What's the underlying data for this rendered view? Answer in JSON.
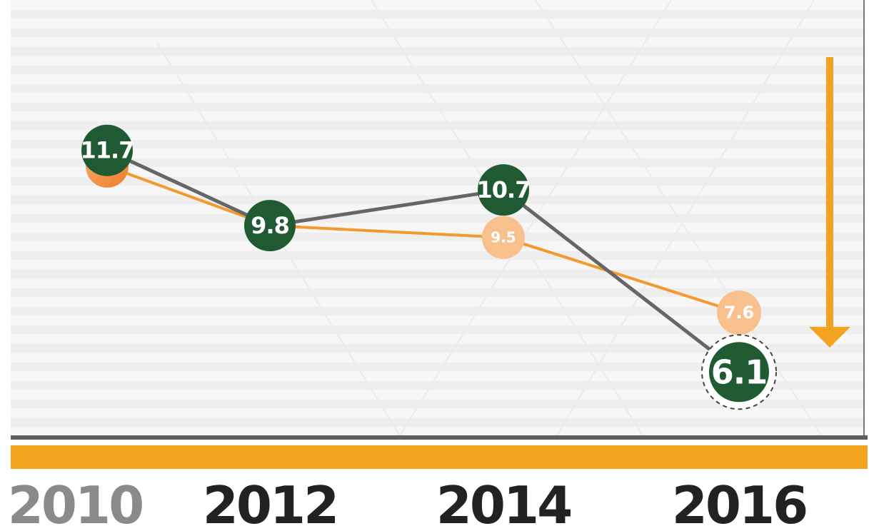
{
  "chart_data": {
    "type": "line",
    "categories": [
      "2010",
      "2012",
      "2014",
      "2016"
    ],
    "series": [
      {
        "color": "#1f5a32",
        "line_color": "#666666",
        "values": [
          11.7,
          9.8,
          10.7,
          6.1
        ],
        "labels": [
          "11.7",
          "9.8",
          "10.7",
          "6.1"
        ]
      },
      {
        "color": "#f7c08d",
        "line_color": "#f29a2e",
        "values": [
          11.3,
          9.8,
          9.5,
          7.6
        ],
        "labels": [
          "11.3",
          "9.8",
          "9.5",
          "7.6"
        ]
      }
    ],
    "xtick_labels": [
      "2010",
      "2012",
      "2014",
      "2016"
    ],
    "xtick_colors": [
      "#8a8a8a",
      "#222222",
      "#222222",
      "#222222"
    ],
    "title": "",
    "xlabel": "",
    "ylabel": "",
    "ylim": [
      4.5,
      15.5
    ],
    "grid": true,
    "annotations": [
      "downward-arrow"
    ],
    "accent_colors": {
      "bar": "#f2a320",
      "axis": "#5e5e5e",
      "arrow": "#f2a320",
      "grid": "#eeeeee"
    }
  }
}
